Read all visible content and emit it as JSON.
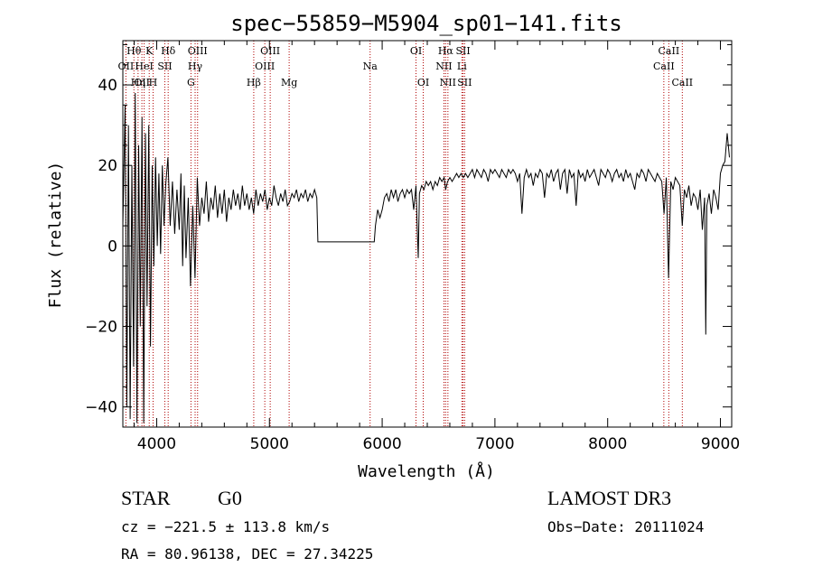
{
  "chart_data": {
    "type": "line",
    "title": "spec−55859−M5904_sp01−141.fits",
    "xlabel": "Wavelength (Å)",
    "ylabel": "Flux (relative)",
    "xlim": [
      3700,
      9100
    ],
    "ylim": [
      -45,
      51
    ],
    "x_ticks": [
      4000,
      5000,
      6000,
      7000,
      8000,
      9000
    ],
    "y_ticks": [
      -40,
      -20,
      0,
      20,
      40
    ],
    "y_tick_labels": [
      "−40",
      "−20",
      "0",
      "20",
      "40"
    ],
    "grid": false,
    "series": [
      {
        "color": "#000000",
        "points": [
          [
            3700,
            5
          ],
          [
            3720,
            35
          ],
          [
            3735,
            -40
          ],
          [
            3750,
            30
          ],
          [
            3765,
            -43
          ],
          [
            3780,
            20
          ],
          [
            3795,
            -30
          ],
          [
            3810,
            38
          ],
          [
            3825,
            -44
          ],
          [
            3840,
            25
          ],
          [
            3855,
            -20
          ],
          [
            3870,
            32
          ],
          [
            3885,
            -44
          ],
          [
            3900,
            28
          ],
          [
            3915,
            -15
          ],
          [
            3930,
            30
          ],
          [
            3945,
            -25
          ],
          [
            3960,
            20
          ],
          [
            3975,
            -5
          ],
          [
            3990,
            22
          ],
          [
            4005,
            0
          ],
          [
            4020,
            18
          ],
          [
            4035,
            -2
          ],
          [
            4050,
            20
          ],
          [
            4065,
            5
          ],
          [
            4080,
            15
          ],
          [
            4100,
            22
          ],
          [
            4120,
            5
          ],
          [
            4140,
            16
          ],
          [
            4160,
            3
          ],
          [
            4180,
            14
          ],
          [
            4200,
            4
          ],
          [
            4215,
            18
          ],
          [
            4230,
            -5
          ],
          [
            4245,
            15
          ],
          [
            4260,
            -3
          ],
          [
            4280,
            12
          ],
          [
            4300,
            -10
          ],
          [
            4320,
            10
          ],
          [
            4340,
            -8
          ],
          [
            4360,
            17
          ],
          [
            4380,
            5
          ],
          [
            4400,
            12
          ],
          [
            4420,
            8
          ],
          [
            4440,
            16
          ],
          [
            4460,
            6
          ],
          [
            4480,
            12
          ],
          [
            4500,
            9
          ],
          [
            4520,
            15
          ],
          [
            4540,
            7
          ],
          [
            4560,
            13
          ],
          [
            4580,
            8
          ],
          [
            4600,
            14
          ],
          [
            4620,
            6
          ],
          [
            4640,
            12
          ],
          [
            4660,
            9
          ],
          [
            4680,
            14
          ],
          [
            4700,
            10
          ],
          [
            4720,
            13
          ],
          [
            4740,
            9
          ],
          [
            4760,
            15
          ],
          [
            4780,
            10
          ],
          [
            4800,
            13
          ],
          [
            4820,
            9
          ],
          [
            4840,
            12
          ],
          [
            4860,
            8
          ],
          [
            4880,
            14
          ],
          [
            4900,
            10
          ],
          [
            4920,
            13
          ],
          [
            4940,
            11
          ],
          [
            4960,
            14
          ],
          [
            4980,
            9
          ],
          [
            5000,
            12
          ],
          [
            5020,
            10
          ],
          [
            5040,
            15
          ],
          [
            5060,
            12
          ],
          [
            5080,
            10
          ],
          [
            5100,
            13
          ],
          [
            5120,
            11
          ],
          [
            5140,
            14
          ],
          [
            5160,
            10
          ],
          [
            5180,
            11
          ],
          [
            5200,
            13
          ],
          [
            5220,
            12
          ],
          [
            5240,
            14
          ],
          [
            5260,
            11
          ],
          [
            5280,
            13
          ],
          [
            5300,
            12
          ],
          [
            5320,
            14
          ],
          [
            5340,
            11
          ],
          [
            5360,
            13
          ],
          [
            5380,
            12
          ],
          [
            5400,
            14
          ],
          [
            5420,
            12
          ],
          [
            5430,
            1
          ],
          [
            5600,
            1
          ],
          [
            5800,
            1
          ],
          [
            5930,
            1
          ],
          [
            5940,
            5
          ],
          [
            5960,
            9
          ],
          [
            5980,
            7
          ],
          [
            6000,
            9
          ],
          [
            6020,
            12
          ],
          [
            6040,
            13
          ],
          [
            6060,
            11
          ],
          [
            6080,
            14
          ],
          [
            6100,
            12
          ],
          [
            6120,
            14
          ],
          [
            6140,
            11
          ],
          [
            6160,
            13
          ],
          [
            6180,
            14
          ],
          [
            6200,
            12
          ],
          [
            6220,
            14
          ],
          [
            6240,
            13
          ],
          [
            6260,
            14
          ],
          [
            6280,
            9
          ],
          [
            6300,
            15
          ],
          [
            6310,
            5
          ],
          [
            6320,
            -3
          ],
          [
            6330,
            13
          ],
          [
            6350,
            15
          ],
          [
            6370,
            14
          ],
          [
            6390,
            16
          ],
          [
            6410,
            15
          ],
          [
            6430,
            16
          ],
          [
            6450,
            14
          ],
          [
            6470,
            16
          ],
          [
            6490,
            15
          ],
          [
            6510,
            17
          ],
          [
            6530,
            16
          ],
          [
            6550,
            17
          ],
          [
            6563,
            14
          ],
          [
            6580,
            16
          ],
          [
            6600,
            17
          ],
          [
            6620,
            16
          ],
          [
            6640,
            17
          ],
          [
            6660,
            18
          ],
          [
            6680,
            17
          ],
          [
            6700,
            18
          ],
          [
            6720,
            17
          ],
          [
            6740,
            18
          ],
          [
            6760,
            17
          ],
          [
            6780,
            18
          ],
          [
            6800,
            19
          ],
          [
            6820,
            17
          ],
          [
            6840,
            19
          ],
          [
            6860,
            18
          ],
          [
            6880,
            17
          ],
          [
            6900,
            19
          ],
          [
            6920,
            18
          ],
          [
            6940,
            16
          ],
          [
            6960,
            19
          ],
          [
            6980,
            18
          ],
          [
            7000,
            19
          ],
          [
            7020,
            18
          ],
          [
            7040,
            17
          ],
          [
            7060,
            19
          ],
          [
            7080,
            18
          ],
          [
            7100,
            17
          ],
          [
            7120,
            19
          ],
          [
            7140,
            18
          ],
          [
            7160,
            19
          ],
          [
            7180,
            18
          ],
          [
            7200,
            16
          ],
          [
            7220,
            18
          ],
          [
            7240,
            8
          ],
          [
            7260,
            17
          ],
          [
            7280,
            19
          ],
          [
            7300,
            17
          ],
          [
            7320,
            18
          ],
          [
            7340,
            15
          ],
          [
            7360,
            18
          ],
          [
            7380,
            17
          ],
          [
            7400,
            19
          ],
          [
            7420,
            18
          ],
          [
            7440,
            12
          ],
          [
            7460,
            18
          ],
          [
            7480,
            17
          ],
          [
            7500,
            19
          ],
          [
            7520,
            16
          ],
          [
            7540,
            18
          ],
          [
            7560,
            19
          ],
          [
            7580,
            14
          ],
          [
            7600,
            18
          ],
          [
            7620,
            19
          ],
          [
            7640,
            13
          ],
          [
            7660,
            19
          ],
          [
            7680,
            17
          ],
          [
            7700,
            18
          ],
          [
            7720,
            10
          ],
          [
            7740,
            19
          ],
          [
            7760,
            17
          ],
          [
            7780,
            18
          ],
          [
            7800,
            16
          ],
          [
            7820,
            19
          ],
          [
            7840,
            17
          ],
          [
            7860,
            18
          ],
          [
            7880,
            19
          ],
          [
            7900,
            17
          ],
          [
            7920,
            15
          ],
          [
            7940,
            19
          ],
          [
            7960,
            18
          ],
          [
            7980,
            17
          ],
          [
            8000,
            19
          ],
          [
            8020,
            18
          ],
          [
            8040,
            16
          ],
          [
            8060,
            18
          ],
          [
            8080,
            19
          ],
          [
            8100,
            17
          ],
          [
            8120,
            18
          ],
          [
            8140,
            16
          ],
          [
            8160,
            19
          ],
          [
            8180,
            17
          ],
          [
            8200,
            18
          ],
          [
            8220,
            16
          ],
          [
            8240,
            14
          ],
          [
            8260,
            18
          ],
          [
            8280,
            17
          ],
          [
            8300,
            19
          ],
          [
            8320,
            18
          ],
          [
            8340,
            16
          ],
          [
            8360,
            19
          ],
          [
            8380,
            18
          ],
          [
            8400,
            17
          ],
          [
            8420,
            16
          ],
          [
            8440,
            18
          ],
          [
            8460,
            17
          ],
          [
            8480,
            16
          ],
          [
            8500,
            8
          ],
          [
            8520,
            17
          ],
          [
            8540,
            -8
          ],
          [
            8560,
            16
          ],
          [
            8580,
            14
          ],
          [
            8600,
            17
          ],
          [
            8620,
            16
          ],
          [
            8640,
            15
          ],
          [
            8662,
            5
          ],
          [
            8680,
            14
          ],
          [
            8700,
            12
          ],
          [
            8720,
            15
          ],
          [
            8740,
            10
          ],
          [
            8760,
            13
          ],
          [
            8780,
            12
          ],
          [
            8800,
            9
          ],
          [
            8820,
            14
          ],
          [
            8840,
            4
          ],
          [
            8860,
            12
          ],
          [
            8870,
            -22
          ],
          [
            8880,
            10
          ],
          [
            8900,
            13
          ],
          [
            8920,
            8
          ],
          [
            8940,
            14
          ],
          [
            8960,
            12
          ],
          [
            8980,
            9
          ],
          [
            9000,
            18
          ],
          [
            9020,
            20
          ],
          [
            9040,
            21
          ],
          [
            9060,
            28
          ],
          [
            9080,
            22
          ]
        ]
      }
    ],
    "spectral_lines": [
      {
        "wl": 3727,
        "label": "OII",
        "row": 2
      },
      {
        "wl": 3798,
        "label": "Hθ",
        "row": 1
      },
      {
        "wl": 3835,
        "label": "Hη",
        "row": 3
      },
      {
        "wl": 3869,
        "label": "OII",
        "row": 3
      },
      {
        "wl": 3889,
        "label": "HeI",
        "row": 2
      },
      {
        "wl": 3934,
        "label": "K",
        "row": 1
      },
      {
        "wl": 3968,
        "label": "H",
        "row": 3
      },
      {
        "wl": 4072,
        "label": "SII",
        "row": 2
      },
      {
        "wl": 4102,
        "label": "Hδ",
        "row": 1
      },
      {
        "wl": 4304,
        "label": "G",
        "row": 3
      },
      {
        "wl": 4341,
        "label": "Hγ",
        "row": 2
      },
      {
        "wl": 4363,
        "label": "OIII",
        "row": 1
      },
      {
        "wl": 4861,
        "label": "Hβ",
        "row": 3
      },
      {
        "wl": 4959,
        "label": "OIII",
        "row": 2
      },
      {
        "wl": 5007,
        "label": "OIII",
        "row": 1
      },
      {
        "wl": 5175,
        "label": "Mg",
        "row": 3
      },
      {
        "wl": 5893,
        "label": "Na",
        "row": 2
      },
      {
        "wl": 6300,
        "label": "OI",
        "row": 1
      },
      {
        "wl": 6364,
        "label": "OI",
        "row": 3
      },
      {
        "wl": 6548,
        "label": "NII",
        "row": 2
      },
      {
        "wl": 6563,
        "label": "Hα",
        "row": 1
      },
      {
        "wl": 6583,
        "label": "NII",
        "row": 3
      },
      {
        "wl": 6707,
        "label": "Li",
        "row": 2
      },
      {
        "wl": 6717,
        "label": "SII",
        "row": 1
      },
      {
        "wl": 6731,
        "label": "SII",
        "row": 3
      },
      {
        "wl": 8498,
        "label": "CaII",
        "row": 2
      },
      {
        "wl": 8542,
        "label": "CaII",
        "row": 1
      },
      {
        "wl": 8662,
        "label": "CaII",
        "row": 3
      }
    ],
    "line_color": "#b00000"
  },
  "footer": {
    "object_class": "STAR",
    "subclass": "G0",
    "survey": "LAMOST DR3",
    "redshift": "cz = −221.5 ± 113.8 km/s",
    "obs_date": "Obs−Date: 20111024",
    "coords": "RA =  80.96138, DEC =  27.34225"
  }
}
